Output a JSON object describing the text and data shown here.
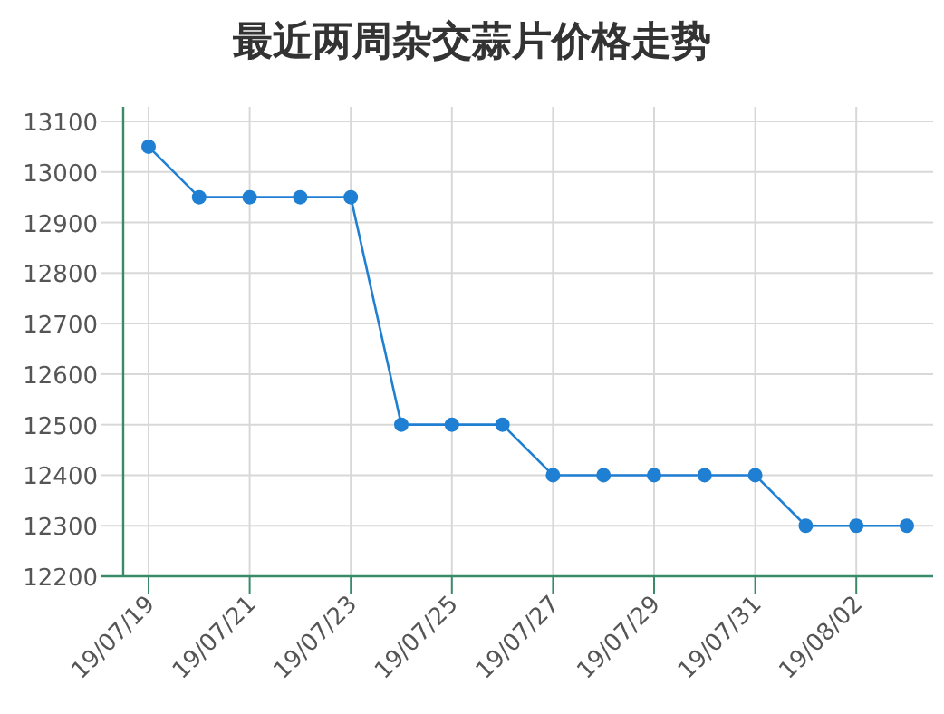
{
  "chart_data": {
    "type": "line",
    "title": "最近两周杂交蒜片价格走势",
    "categories": [
      "19/07/19",
      null,
      "19/07/21",
      null,
      "19/07/23",
      null,
      "19/07/25",
      null,
      "19/07/27",
      null,
      "19/07/29",
      null,
      "19/07/31",
      null,
      "19/08/02",
      null
    ],
    "series": [
      {
        "color": "#1f7fd2",
        "values": [
          13050,
          12950,
          12950,
          12950,
          12950,
          12500,
          12500,
          12500,
          12400,
          12400,
          12400,
          12400,
          12400,
          12300,
          12300,
          12300
        ]
      }
    ],
    "ylim": [
      12200,
      13100
    ],
    "yticks": [
      12200,
      12300,
      12400,
      12500,
      12600,
      12700,
      12800,
      12900,
      13000,
      13100
    ],
    "grid": true,
    "marker": "circle",
    "line_style": "solid"
  }
}
